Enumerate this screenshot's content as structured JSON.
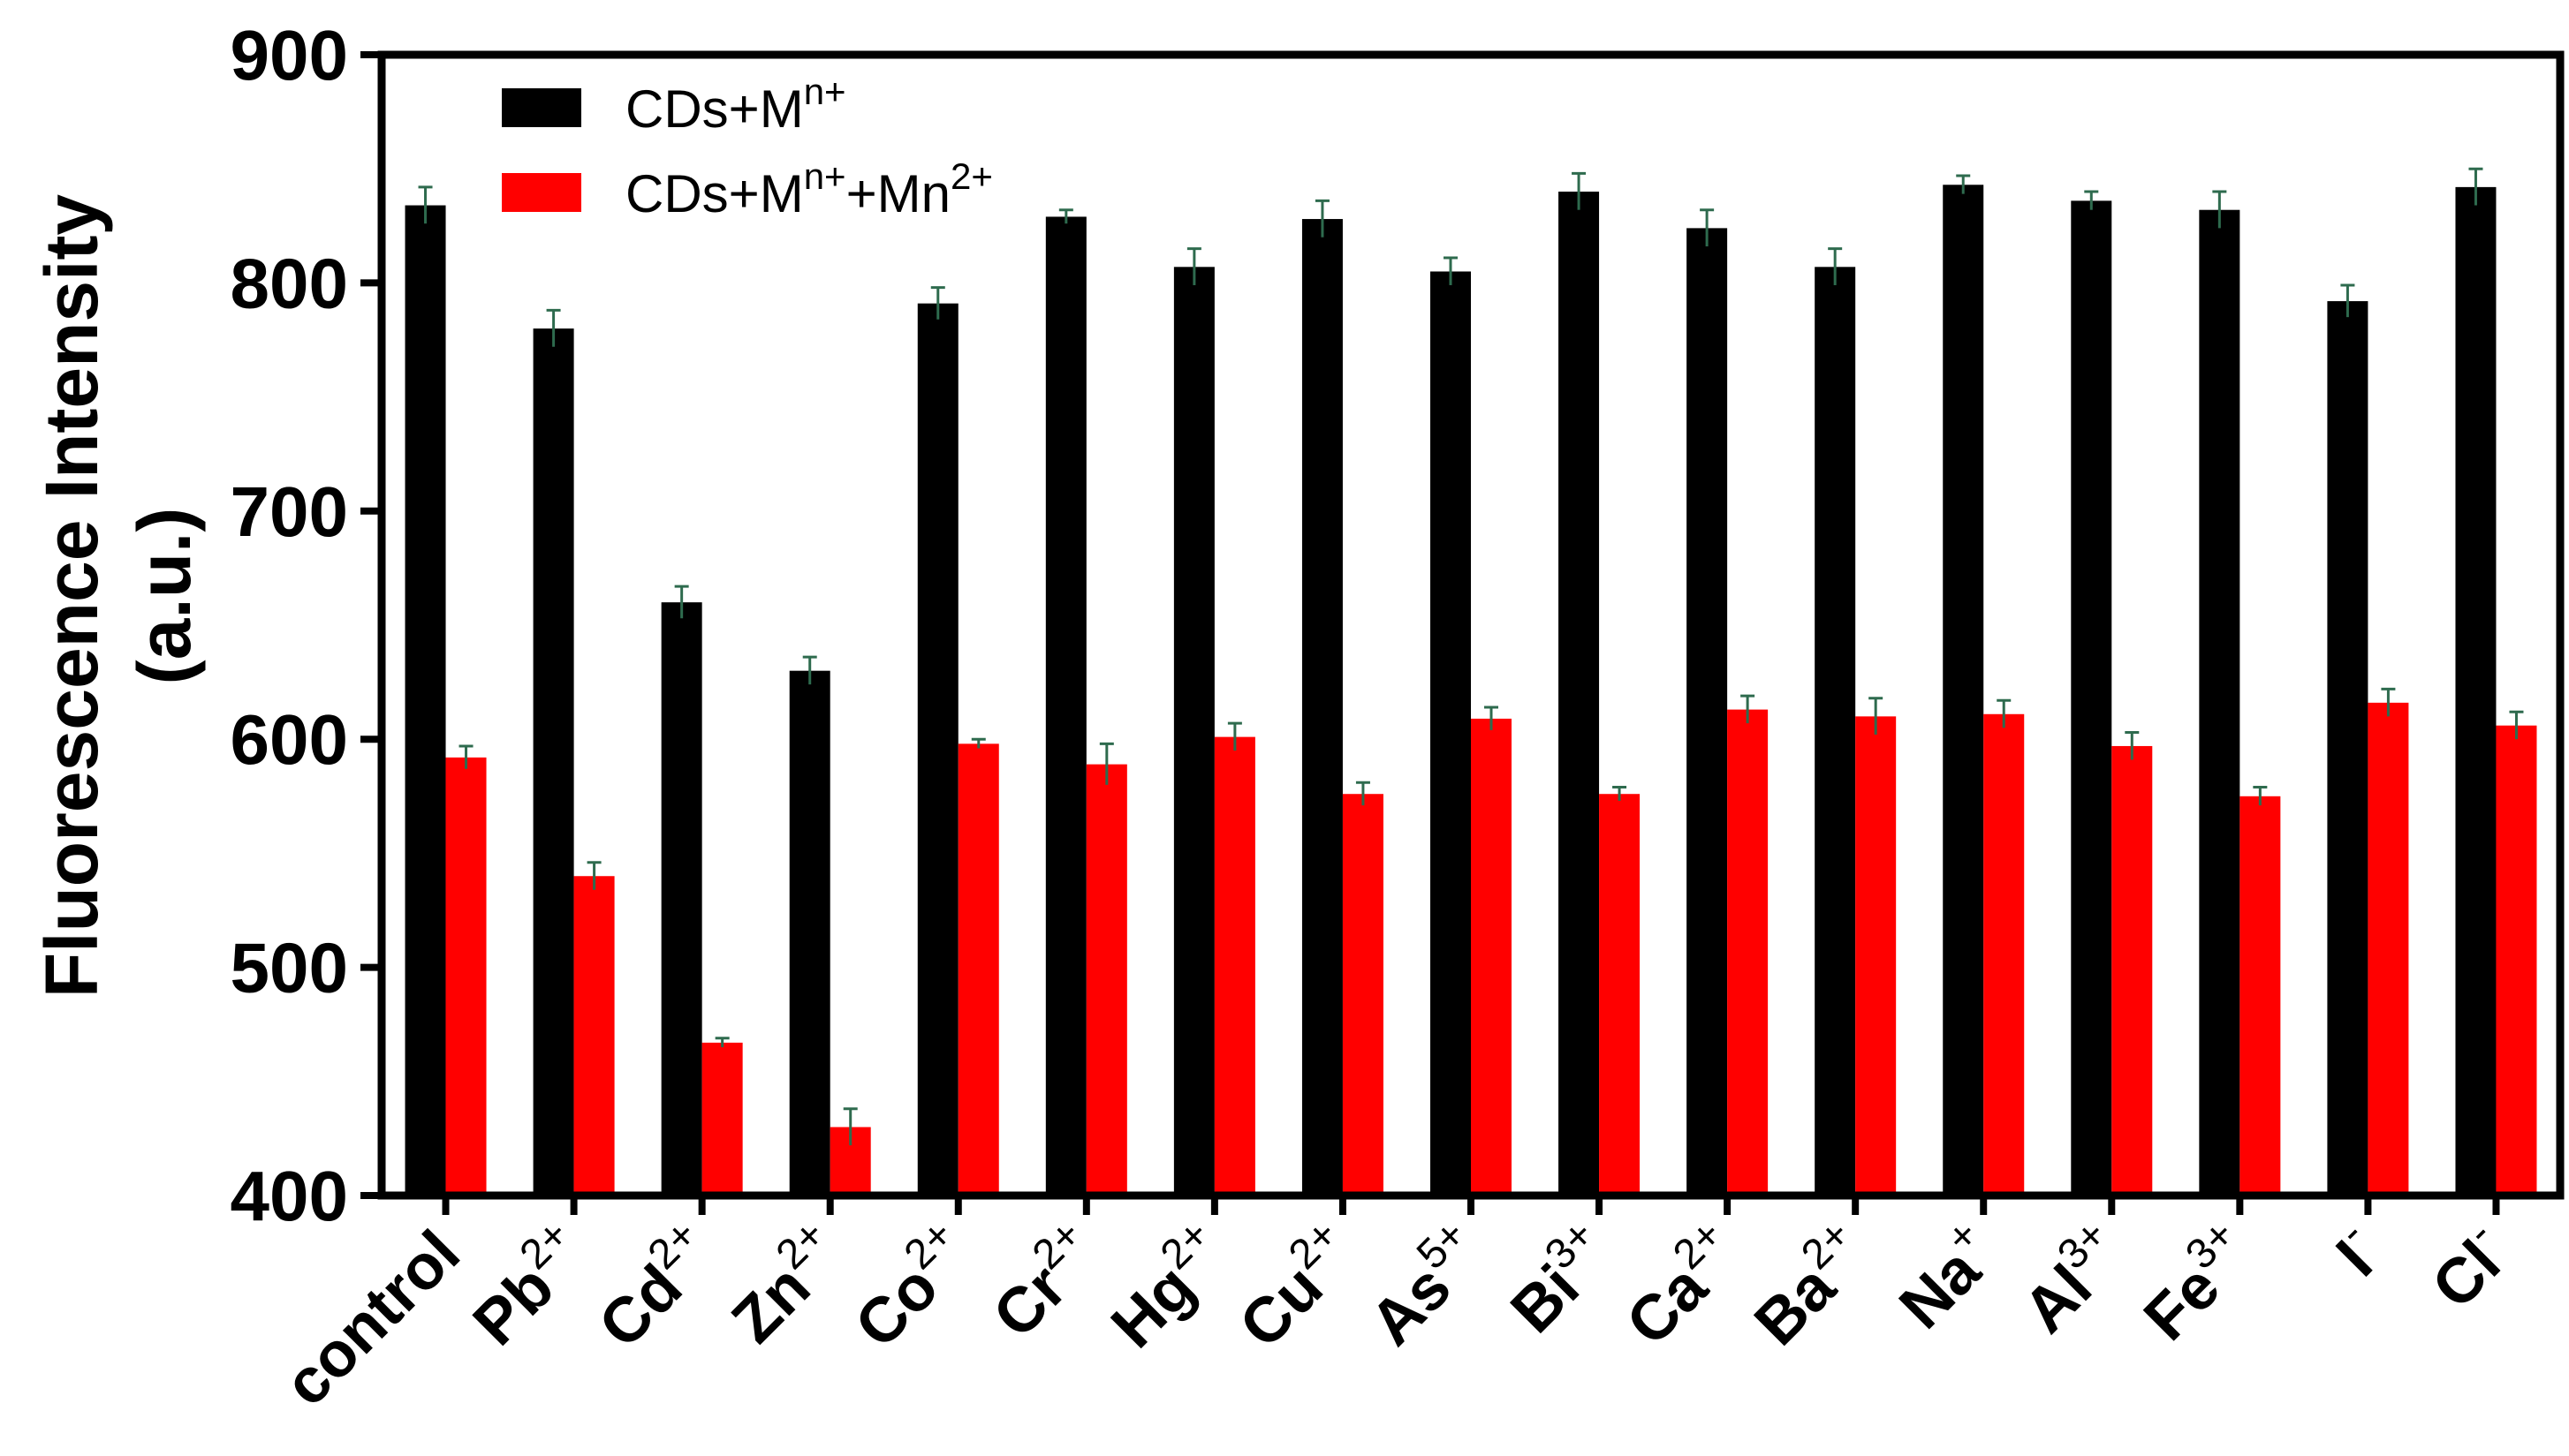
{
  "chart_data": {
    "type": "bar",
    "ylabel_line1": "Fluorescence Intensity",
    "ylabel_line2": "(a.u.)",
    "ylim": [
      400,
      900
    ],
    "yticks": [
      400,
      500,
      600,
      700,
      800,
      900
    ],
    "grid": false,
    "legend_position": "top-left",
    "categories": [
      {
        "base": "control",
        "sup": ""
      },
      {
        "base": "Pb",
        "sup": "2+"
      },
      {
        "base": "Cd",
        "sup": "2+"
      },
      {
        "base": "Zn",
        "sup": "2+"
      },
      {
        "base": "Co",
        "sup": "2+"
      },
      {
        "base": "Cr",
        "sup": "2+"
      },
      {
        "base": "Hg",
        "sup": "2+"
      },
      {
        "base": "Cu",
        "sup": "2+"
      },
      {
        "base": "As",
        "sup": "5+"
      },
      {
        "base": "Bi",
        "sup": "3+"
      },
      {
        "base": "Ca",
        "sup": "2+"
      },
      {
        "base": "Ba",
        "sup": "2+"
      },
      {
        "base": "Na",
        "sup": "+"
      },
      {
        "base": "Al",
        "sup": "3+"
      },
      {
        "base": "Fe",
        "sup": "3+"
      },
      {
        "base": "I",
        "sup": "-"
      },
      {
        "base": "Cl",
        "sup": "-"
      }
    ],
    "series": [
      {
        "name_base": "CDs+M",
        "name_sup": "n+",
        "name_base2": "",
        "name_sup2": "",
        "color": "#000000",
        "values": [
          834,
          780,
          660,
          630,
          791,
          829,
          807,
          828,
          805,
          840,
          824,
          807,
          843,
          836,
          832,
          792,
          842
        ],
        "errors": [
          8,
          8,
          7,
          6,
          7,
          3,
          8,
          8,
          6,
          8,
          8,
          8,
          4,
          4,
          8,
          7,
          8
        ]
      },
      {
        "name_base": "CDs+M",
        "name_sup": "n+",
        "name_base2": "+Mn",
        "name_sup2": "2+",
        "color": "#ff0000",
        "values": [
          592,
          540,
          467,
          430,
          598,
          589,
          601,
          576,
          609,
          576,
          613,
          610,
          611,
          597,
          575,
          616,
          606
        ],
        "errors": [
          5,
          6,
          2,
          8,
          2,
          9,
          6,
          5,
          5,
          3,
          6,
          8,
          6,
          6,
          4,
          6,
          6
        ]
      }
    ],
    "error_bar_color": "#2e6b4e"
  }
}
